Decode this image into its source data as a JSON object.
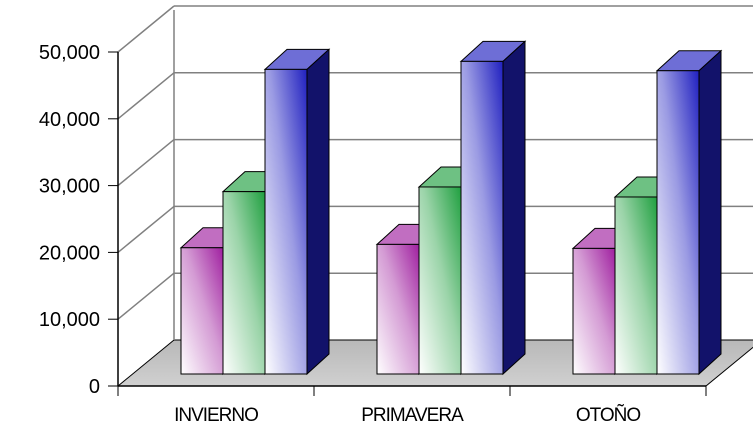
{
  "colors": {
    "series": [
      "#a020a0",
      "#20a040",
      "#2020c0"
    ],
    "floor": "#c0c0c0",
    "grid": "#808080"
  },
  "chart_data": {
    "type": "bar",
    "title": "",
    "xlabel": "",
    "ylabel": "",
    "categories": [
      "INVIERNO",
      "PRIMAVERA",
      "OTOÑO"
    ],
    "series": [
      {
        "values": [
          18900,
          19400,
          18800
        ]
      },
      {
        "values": [
          27300,
          28000,
          26500
        ]
      },
      {
        "values": [
          45600,
          46800,
          45400
        ]
      }
    ],
    "ylim": [
      0,
      50000
    ],
    "yticks": [
      "0",
      "10,000",
      "20,000",
      "30,000",
      "40,000",
      "50,000"
    ],
    "grid": true,
    "legend": "none",
    "style": "3d-clustered-column"
  }
}
